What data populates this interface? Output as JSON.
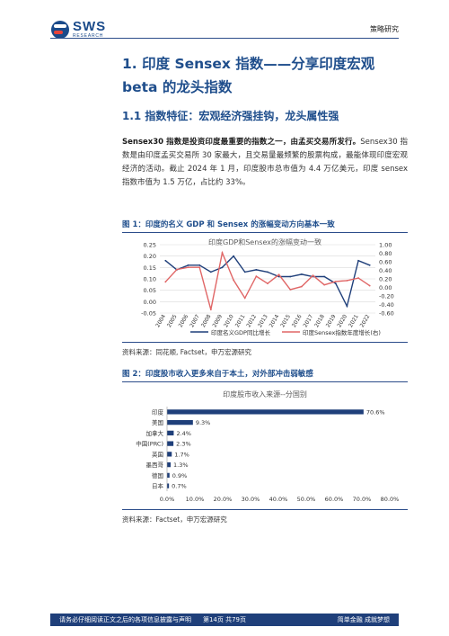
{
  "header": {
    "logo_text": "SWS",
    "logo_sub": "RESEARCH",
    "tag": "策略研究"
  },
  "heading1": "1. 印度 Sensex 指数——分享印度宏观 beta 的龙头指数",
  "heading2": "1.1 指数特征：宏观经济强挂钩，龙头属性强",
  "paragraph": {
    "bold": "Sensex30 指数是投资印度最重要的指数之一，由孟买交易所发行。",
    "rest": "Sensex30 指数是由印度孟买交易所 30 家最大，且交易量最频繁的股票构成，最能体现印度宏观经济的活动。截止 2024 年 1 月，印度股市总市值为 4.4 万亿美元，印度 sensex 指数市值为 1.5 万亿，占比约 33%。"
  },
  "figure1": {
    "title": "图 1：印度的名义 GDP 和 Sensex 的涨幅变动方向基本一致",
    "source": "资料来源：同花顺, Factset，申万宏源研究"
  },
  "figure2": {
    "title": "图 2：印度股市收入更多来自于本土，对外部冲击弱敏感",
    "source": "资料来源：Factset，申万宏源研究"
  },
  "chart_data": [
    {
      "type": "line",
      "title": "印度GDP和Sensex的涨幅变动一致",
      "x": [
        "2004",
        "2005",
        "2006",
        "2007",
        "2008",
        "2009",
        "2010",
        "2011",
        "2012",
        "2013",
        "2014",
        "2015",
        "2016",
        "2017",
        "2018",
        "2019",
        "2020",
        "2021",
        "2022"
      ],
      "series": [
        {
          "name": "印度名义GDP同比增长",
          "axis": "left",
          "color": "#1f3f7a",
          "values": [
            0.18,
            0.14,
            0.16,
            0.16,
            0.13,
            0.15,
            0.2,
            0.13,
            0.14,
            0.13,
            0.11,
            0.11,
            0.12,
            0.11,
            0.11,
            0.08,
            -0.02,
            0.18,
            0.16
          ]
        },
        {
          "name": "印度Sensex指数年度增长(右)",
          "axis": "right",
          "color": "#e06666",
          "values": [
            0.13,
            0.42,
            0.47,
            0.47,
            -0.52,
            0.81,
            0.17,
            -0.25,
            0.26,
            0.09,
            0.3,
            -0.05,
            0.02,
            0.28,
            0.06,
            0.14,
            0.16,
            0.22,
            0.04
          ]
        }
      ],
      "left_axis": {
        "min": -0.05,
        "max": 0.25,
        "ticks": [
          "-0.05",
          "0.00",
          "0.05",
          "0.10",
          "0.15",
          "0.20",
          "0.25"
        ]
      },
      "right_axis": {
        "min": -0.6,
        "max": 1.0,
        "ticks": [
          "-0.60",
          "-0.40",
          "-0.20",
          "0.00",
          "0.20",
          "0.40",
          "0.60",
          "0.80",
          "1.00"
        ]
      },
      "grid": true,
      "legend": "bottom"
    },
    {
      "type": "bar",
      "orientation": "horizontal",
      "title": "印度股市收入来源--分国别",
      "categories": [
        "印度",
        "美国",
        "加拿大",
        "中国(PRC)",
        "英国",
        "墨西哥",
        "德国",
        "日本"
      ],
      "values": [
        70.6,
        9.3,
        2.4,
        2.3,
        1.7,
        1.3,
        0.9,
        0.7
      ],
      "value_labels": [
        "70.6%",
        "9.3%",
        "2.4%",
        "2.3%",
        "1.7%",
        "1.3%",
        "0.9%",
        "0.7%"
      ],
      "color": "#1f3f7a",
      "xlim": [
        0,
        80
      ],
      "x_ticks": [
        "0.0%",
        "10.0%",
        "20.0%",
        "30.0%",
        "40.0%",
        "50.0%",
        "60.0%",
        "70.0%",
        "80.0%"
      ],
      "grid": false
    }
  ],
  "footer": {
    "left": "请务必仔细阅读正文之后的各项信息披露与声明",
    "center": "第14页 共79页",
    "right": "简单金融 成就梦想"
  }
}
